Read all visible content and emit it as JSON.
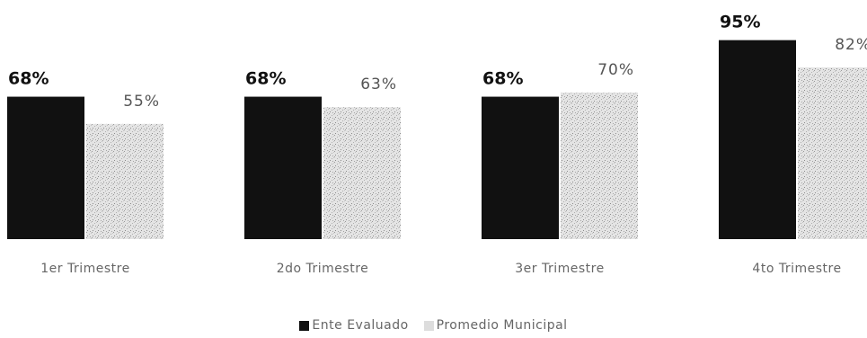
{
  "chart_data": {
    "type": "bar",
    "categories": [
      "1er Trimestre",
      "2do Trimestre",
      "3er Trimestre",
      "4to Trimestre"
    ],
    "series": [
      {
        "name": "Ente Evaluado",
        "values": [
          68,
          68,
          68,
          95
        ],
        "labels": [
          "68%",
          "68%",
          "68%",
          "95%"
        ],
        "color": "#111111"
      },
      {
        "name": "Promedio Municipal",
        "values": [
          55,
          63,
          70,
          82
        ],
        "labels": [
          "55%",
          "63%",
          "70%",
          "82%"
        ],
        "color": "#d8d8d8"
      }
    ],
    "ylim": [
      0,
      100
    ],
    "grid": false,
    "legend_position": "bottom"
  }
}
